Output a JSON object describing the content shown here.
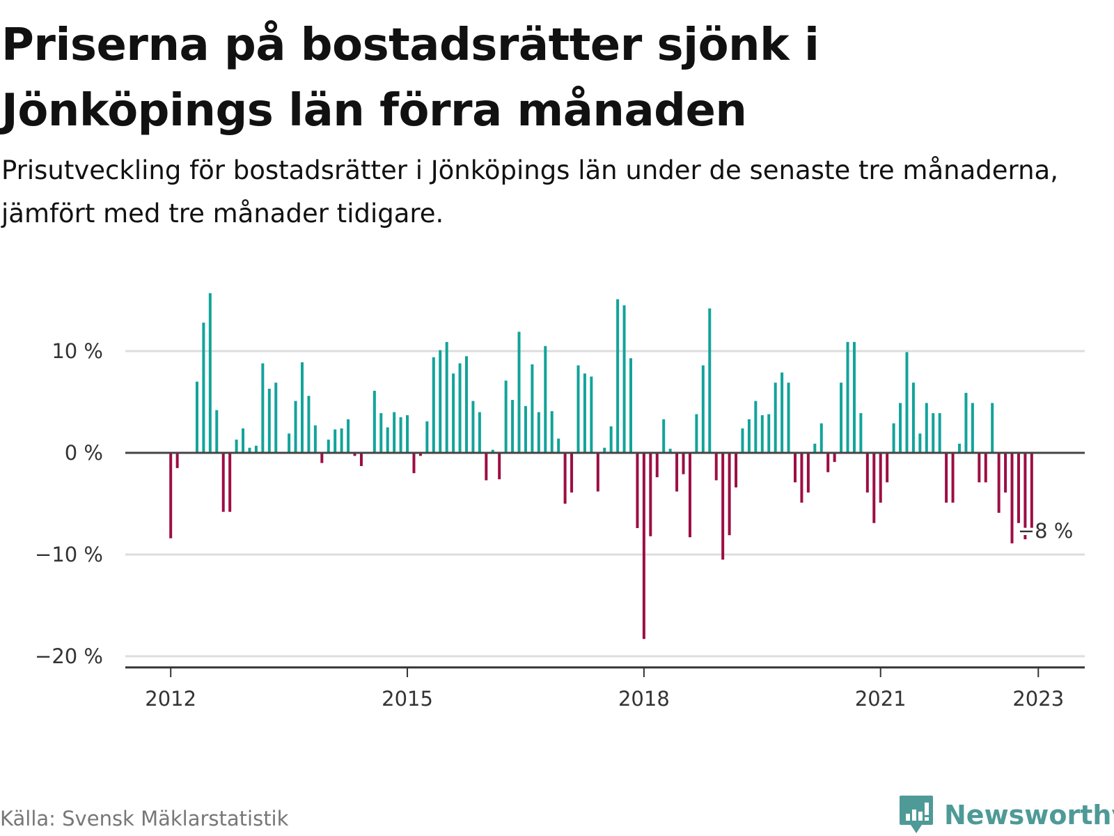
{
  "title": "Priserna på bostadsrätter sjönk i Jönköpings län förra månaden",
  "subtitle": "Prisutveckling för bostadsrätter i Jönköpings län under de senaste tre månaderna, jämfört med tre månader tidigare.",
  "source": "Källa: Svensk Mäklarstatistik",
  "brand": {
    "name": "Newsworthy",
    "icon": "newsworthy-logo-icon",
    "color": "#4e9a97"
  },
  "colors": {
    "positive": "#12a39a",
    "negative": "#9c0e44",
    "zero_line": "#444444",
    "grid": "#dddddd"
  },
  "chart_data": {
    "type": "bar",
    "x_start": "2012-01",
    "frequency": "monthly",
    "x_ticks": [
      "2012",
      "2015",
      "2018",
      "2021",
      "2023"
    ],
    "y_ticks": [
      "10 %",
      "0 %",
      "−10 %",
      "−20 %"
    ],
    "y_tick_values": [
      10,
      0,
      -10,
      -20
    ],
    "ylim": [
      -21,
      16
    ],
    "grid": true,
    "annotation": {
      "text": "−8 %",
      "month_index": 131,
      "value": -8
    },
    "values": [
      -8.4,
      -1.5,
      0,
      0,
      7.0,
      12.8,
      15.7,
      4.2,
      -5.8,
      -5.8,
      1.3,
      2.4,
      0.5,
      0.7,
      8.8,
      6.3,
      6.9,
      0,
      1.9,
      5.1,
      8.9,
      5.6,
      2.7,
      -1.0,
      1.3,
      2.3,
      2.4,
      3.3,
      -0.3,
      -1.3,
      0,
      6.1,
      3.9,
      2.5,
      4.0,
      3.5,
      3.7,
      -2.0,
      -0.3,
      3.1,
      9.4,
      10.1,
      10.9,
      7.8,
      8.8,
      9.5,
      5.1,
      4.0,
      -2.7,
      0.3,
      -2.6,
      7.1,
      5.2,
      11.9,
      4.6,
      8.7,
      4.0,
      10.5,
      4.1,
      1.4,
      -5.0,
      -3.9,
      8.6,
      7.8,
      7.5,
      -3.8,
      0.5,
      2.6,
      15.1,
      14.5,
      9.3,
      -7.4,
      -18.3,
      -8.2,
      -2.4,
      3.3,
      0.4,
      -3.8,
      -2.1,
      -8.3,
      3.8,
      8.6,
      14.2,
      -2.7,
      -10.5,
      -8.1,
      -3.4,
      2.4,
      3.3,
      5.1,
      3.7,
      3.8,
      6.9,
      7.9,
      6.9,
      -2.9,
      -4.9,
      -3.9,
      0.9,
      2.9,
      -1.9,
      -0.9,
      6.9,
      10.9,
      10.9,
      3.9,
      -3.9,
      -6.9,
      -4.9,
      -2.9,
      2.9,
      4.9,
      9.9,
      6.9,
      1.9,
      4.9,
      3.9,
      3.9,
      -4.9,
      -4.9,
      0.9,
      5.9,
      4.9,
      -2.9,
      -2.9,
      4.9,
      -5.9,
      -3.9,
      -8.9,
      -6.9,
      -8.5,
      -8.0
    ]
  }
}
